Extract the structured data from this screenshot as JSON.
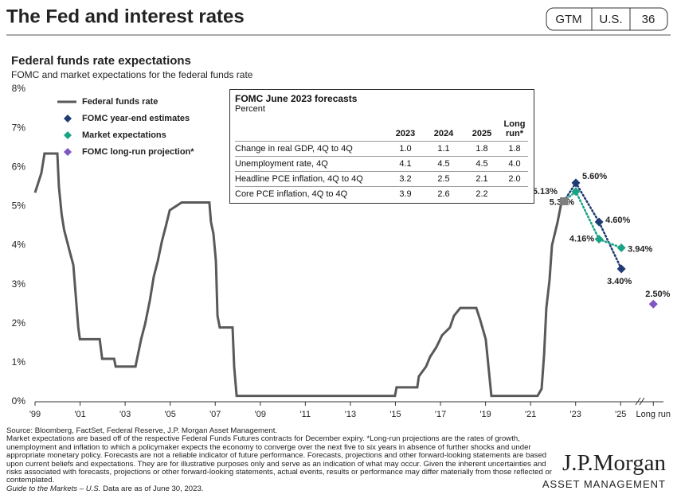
{
  "header": {
    "title": "The Fed and interest rates",
    "tags": [
      "GTM",
      "U.S.",
      "36"
    ]
  },
  "chart_data": {
    "type": "line",
    "title": "Federal funds rate expectations",
    "subtitle": "FOMC and market expectations for the federal funds rate",
    "xlim": [
      1999,
      2026.9
    ],
    "xticks": [
      {
        "value": 1999,
        "label": "'99"
      },
      {
        "value": 2001,
        "label": "'01"
      },
      {
        "value": 2003,
        "label": "'03"
      },
      {
        "value": 2005,
        "label": "'05"
      },
      {
        "value": 2007,
        "label": "'07"
      },
      {
        "value": 2009,
        "label": "'09"
      },
      {
        "value": 2011,
        "label": "'11"
      },
      {
        "value": 2013,
        "label": "'13"
      },
      {
        "value": 2015,
        "label": "'15"
      },
      {
        "value": 2017,
        "label": "'17"
      },
      {
        "value": 2019,
        "label": "'19"
      },
      {
        "value": 2021,
        "label": "'21"
      },
      {
        "value": 2023,
        "label": "'23"
      },
      {
        "value": 2025,
        "label": "'25"
      },
      {
        "value": 2026.45,
        "label": "Long run"
      }
    ],
    "ylim": [
      0,
      8
    ],
    "yticks": [
      {
        "value": 0,
        "label": "0%"
      },
      {
        "value": 1,
        "label": "1%"
      },
      {
        "value": 2,
        "label": "2%"
      },
      {
        "value": 3,
        "label": "3%"
      },
      {
        "value": 4,
        "label": "4%"
      },
      {
        "value": 5,
        "label": "5%"
      },
      {
        "value": 6,
        "label": "6%"
      },
      {
        "value": 7,
        "label": "7%"
      },
      {
        "value": 8,
        "label": "8%"
      }
    ],
    "grid": false,
    "legend": "upper left",
    "series": [
      {
        "name": "Federal funds rate",
        "style": "line",
        "color": "#595959",
        "x": [
          1999.0,
          1999.14,
          1999.28,
          1999.42,
          1999.99,
          2000.06,
          2000.18,
          2000.29,
          2000.56,
          2000.7,
          2000.81,
          2000.92,
          2000.99,
          2001.87,
          2001.98,
          2002.51,
          2002.58,
          2003.46,
          2003.53,
          2003.71,
          2003.89,
          2004.1,
          2004.27,
          2004.45,
          2004.63,
          2004.81,
          2004.98,
          2005.51,
          2006.74,
          2006.81,
          2006.92,
          2007.03,
          2007.1,
          2007.2,
          2007.77,
          2007.84,
          2007.95,
          2014.98,
          2015.05,
          2015.97,
          2016.04,
          2016.36,
          2016.54,
          2016.82,
          2017.07,
          2017.42,
          2017.6,
          2017.88,
          2018.59,
          2018.76,
          2019.01,
          2019.26,
          2021.31,
          2021.49,
          2021.6,
          2021.7,
          2021.84,
          2021.95,
          2022.2,
          2022.37
        ],
        "values": [
          5.35,
          5.6,
          5.85,
          6.35,
          6.35,
          5.5,
          4.8,
          4.4,
          3.8,
          3.5,
          2.7,
          1.9,
          1.6,
          1.6,
          1.1,
          1.1,
          0.9,
          0.9,
          1.1,
          1.6,
          2.0,
          2.6,
          3.2,
          3.6,
          4.1,
          4.5,
          4.9,
          5.1,
          5.1,
          4.6,
          4.3,
          3.6,
          2.2,
          1.9,
          1.9,
          0.9,
          0.15,
          0.15,
          0.37,
          0.37,
          0.65,
          0.9,
          1.15,
          1.4,
          1.7,
          1.9,
          2.2,
          2.4,
          2.4,
          2.1,
          1.6,
          0.15,
          0.15,
          0.33,
          1.2,
          2.4,
          3.1,
          4.0,
          4.6,
          5.1
        ]
      },
      {
        "name": "FOMC year-end estimates",
        "style": "diamond",
        "connector": "dotted",
        "color": "#1f3b73",
        "x": [
          2023.01,
          2024.04,
          2025.03
        ],
        "values": [
          5.6,
          4.6,
          3.4
        ],
        "value_labels": [
          "5.60%",
          "4.60%",
          "3.40%"
        ]
      },
      {
        "name": "Market expectations",
        "style": "diamond",
        "connector": "dotted",
        "color": "#1ba385",
        "x": [
          2023.01,
          2024.04,
          2025.03
        ],
        "values": [
          5.38,
          4.16,
          3.94
        ],
        "value_labels": [
          "5.38%",
          "4.16%",
          "3.94%"
        ]
      },
      {
        "name": "FOMC long-run projection*",
        "style": "diamond",
        "color": "#7e57c2",
        "x": [
          2026.45
        ],
        "values": [
          2.5
        ],
        "value_labels": [
          "2.50%"
        ]
      }
    ],
    "current": {
      "x": 2022.48,
      "value": 5.13,
      "label": "5.13%",
      "color": "#7f7f7f"
    }
  },
  "table": {
    "title": "FOMC June 2023 forecasts",
    "subtitle": "Percent",
    "columns": [
      "2023",
      "2024",
      "2025",
      "Long run*"
    ],
    "rows": [
      {
        "label": "Change in real GDP, 4Q to 4Q",
        "values": [
          "1.0",
          "1.1",
          "1.8",
          "1.8"
        ]
      },
      {
        "label": "Unemployment rate, 4Q",
        "values": [
          "4.1",
          "4.5",
          "4.5",
          "4.0"
        ]
      },
      {
        "label": "Headline PCE inflation, 4Q to 4Q",
        "values": [
          "3.2",
          "2.5",
          "2.1",
          "2.0"
        ]
      },
      {
        "label": "Core PCE inflation, 4Q to 4Q",
        "values": [
          "3.9",
          "2.6",
          "2.2"
        ]
      }
    ]
  },
  "footer": {
    "source": "Source: Bloomberg, FactSet, Federal Reserve, J.P. Morgan Asset Management.",
    "note": "Market expectations are based off of the respective Federal Funds Futures contracts for December expiry. *Long-run projections are the rates of growth, unemployment and inflation to which a policymaker expects the economy to converge over the next five to six years in absence of further shocks and under appropriate monetary policy. Forecasts are not a reliable indicator of future performance. Forecasts, projections and other forward-looking statements are based upon current beliefs and expectations. They are for illustrative purposes only and serve as an indication of what may occur. Given the inherent uncertainties and risks associated with forecasts, projections or other forward-looking statements, actual events, results or performance may differ materially from those reflected or contemplated.",
    "guide": "Guide to the Markets – U.S.",
    "date": "Data are as of June 30, 2023.",
    "logo": "J.P.Morgan",
    "logo_sub": "ASSET MANAGEMENT"
  }
}
